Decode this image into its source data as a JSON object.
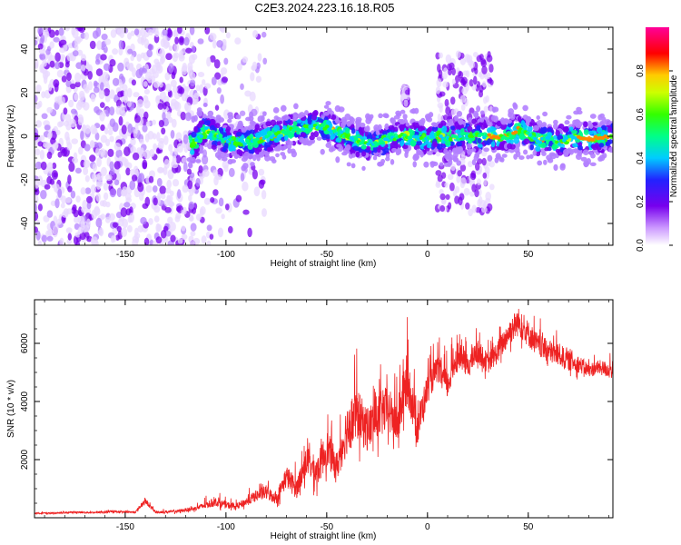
{
  "page_title": "C2E3.2024.223.16.18.R05",
  "colors": {
    "spectrogram_dots": "#7700ee",
    "snr_line": "#ee2222",
    "background": "#ffffff"
  },
  "chart_data": [
    {
      "type": "heatmap",
      "title": "",
      "xlabel": "Height of straight line (km)",
      "ylabel": "Frequency (Hz)",
      "xlim": [
        -195,
        92
      ],
      "ylim": [
        -50,
        50
      ],
      "x_ticks": [
        "-150",
        "-100",
        "-50",
        "0",
        "50"
      ],
      "y_ticks": [
        "-40",
        "-20",
        "0",
        "20",
        "40"
      ],
      "colorbar": {
        "label": "Normalized spectral amplitude",
        "range": [
          0,
          1
        ],
        "ticks": [
          "0.0",
          "0.2",
          "0.4",
          "0.6",
          "0.8"
        ],
        "colormap": "rainbow (white-purple-blue-cyan-green-yellow-red-magenta)"
      },
      "ridge_frequency_trace": {
        "x": [
          -117,
          -110,
          -100,
          -90,
          -80,
          -70,
          -60,
          -55,
          -50,
          -45,
          -40,
          -35,
          -30,
          -25,
          -20,
          -15,
          -10,
          -5,
          0,
          5,
          10,
          15,
          20,
          25,
          30,
          35,
          40,
          45,
          50,
          55,
          60,
          65,
          70,
          75,
          80,
          85,
          90
        ],
        "y": [
          -4,
          3,
          -2,
          -3,
          -1,
          2,
          4,
          5,
          4,
          2,
          0,
          -2,
          -3,
          -3,
          -2,
          0,
          0,
          -1,
          -1,
          0,
          -1,
          0,
          1,
          0,
          0,
          0,
          0,
          3,
          1,
          -2,
          -1,
          -3,
          -1,
          0,
          -1,
          -1,
          0
        ]
      }
    },
    {
      "type": "line",
      "title": "",
      "xlabel": "Height of straight line (km)",
      "ylabel": "SNR (10 * v/v)",
      "xlim": [
        -195,
        92
      ],
      "ylim": [
        0,
        7500
      ],
      "x_ticks": [
        "-150",
        "-100",
        "-50",
        "0",
        "50"
      ],
      "y_ticks": [
        "2000",
        "4000",
        "6000"
      ],
      "series": [
        {
          "x": [
            -195,
            -185,
            -175,
            -165,
            -155,
            -145,
            -140,
            -135,
            -125,
            -115,
            -110,
            -105,
            -100,
            -95,
            -90,
            -85,
            -80,
            -75,
            -70,
            -65,
            -60,
            -55,
            -50,
            -45,
            -40,
            -35,
            -30,
            -25,
            -20,
            -15,
            -10,
            -5,
            0,
            5,
            10,
            15,
            20,
            25,
            30,
            35,
            40,
            45,
            50,
            55,
            60,
            65,
            70,
            75,
            80,
            85,
            90
          ],
          "y": [
            150,
            150,
            180,
            170,
            200,
            180,
            550,
            180,
            200,
            300,
            400,
            500,
            400,
            350,
            500,
            700,
            800,
            600,
            1300,
            900,
            1800,
            1400,
            2200,
            1600,
            2800,
            3300,
            2800,
            3200,
            3500,
            3000,
            4500,
            2900,
            4300,
            5000,
            4400,
            5500,
            5100,
            5600,
            5200,
            5600,
            6200,
            6600,
            6200,
            5800,
            5600,
            5500,
            5300,
            5200,
            5000,
            5100,
            5000
          ],
          "spread": [
            50,
            50,
            60,
            60,
            70,
            60,
            200,
            80,
            100,
            150,
            250,
            300,
            250,
            200,
            300,
            400,
            500,
            400,
            800,
            700,
            1000,
            1000,
            1300,
            1000,
            1800,
            1800,
            1500,
            1600,
            1600,
            1500,
            1700,
            1400,
            1000,
            900,
            1000,
            900,
            800,
            800,
            700,
            800,
            900,
            1000,
            900,
            800,
            800,
            800,
            700,
            600,
            500,
            500,
            600
          ]
        }
      ]
    }
  ]
}
